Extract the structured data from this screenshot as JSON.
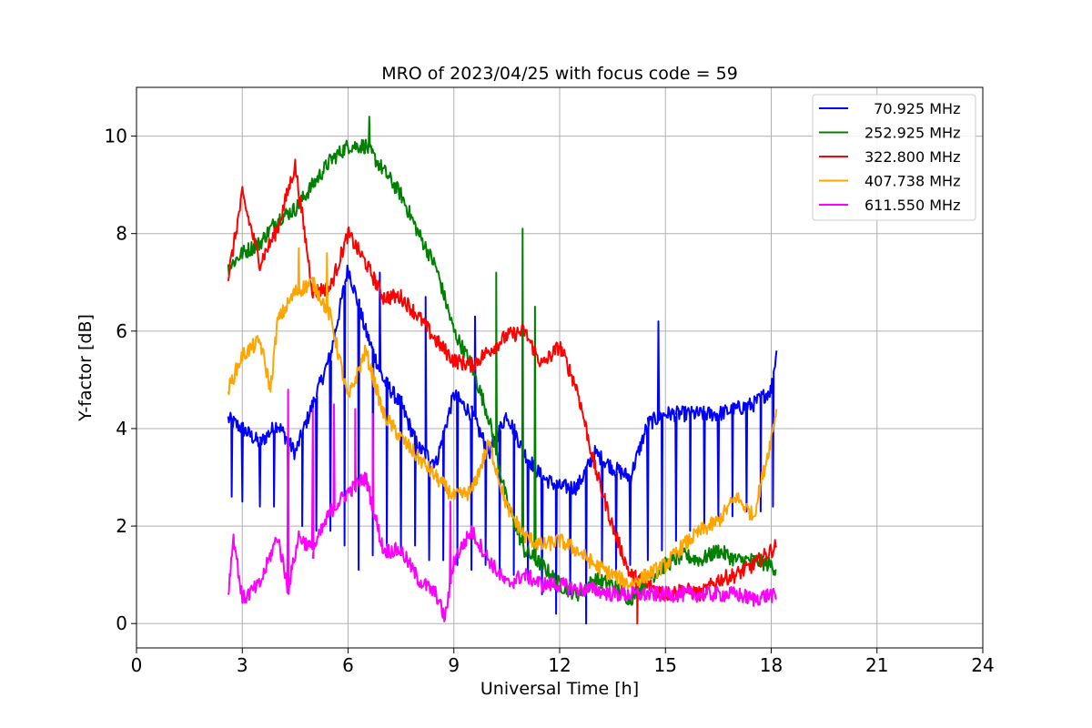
{
  "chart_data": {
    "type": "line",
    "title": "MRO of 2023/04/25 with focus code = 59",
    "xlabel": "Universal Time [h]",
    "ylabel": "Y-factor [dB]",
    "xlim": [
      0,
      24
    ],
    "ylim": [
      -0.5,
      11
    ],
    "xticks": [
      0,
      3,
      6,
      9,
      12,
      15,
      18,
      21,
      24
    ],
    "yticks": [
      0,
      2,
      4,
      6,
      8,
      10
    ],
    "grid": true,
    "legend_position": "top-right",
    "series": [
      {
        "name": "  70.925 MHz",
        "color": "#0000ff",
        "points": [
          [
            2.6,
            4.2
          ],
          [
            3.0,
            4.0
          ],
          [
            3.5,
            3.7
          ],
          [
            4.0,
            4.1
          ],
          [
            4.5,
            3.5
          ],
          [
            5.0,
            4.5
          ],
          [
            5.5,
            5.5
          ],
          [
            6.0,
            7.3
          ],
          [
            6.5,
            6.0
          ],
          [
            7.0,
            5.0
          ],
          [
            7.5,
            4.5
          ],
          [
            8.0,
            3.6
          ],
          [
            8.5,
            3.3
          ],
          [
            9.0,
            4.7
          ],
          [
            9.5,
            4.3
          ],
          [
            10.0,
            3.5
          ],
          [
            10.5,
            4.3
          ],
          [
            11.0,
            3.5
          ],
          [
            11.5,
            3.0
          ],
          [
            12.0,
            2.8
          ],
          [
            12.5,
            2.8
          ],
          [
            13.0,
            3.5
          ],
          [
            13.5,
            3.2
          ],
          [
            14.0,
            3.0
          ],
          [
            14.5,
            4.1
          ],
          [
            15.0,
            4.3
          ],
          [
            15.5,
            4.3
          ],
          [
            16.0,
            4.3
          ],
          [
            16.5,
            4.3
          ],
          [
            17.0,
            4.4
          ],
          [
            17.5,
            4.5
          ],
          [
            18.0,
            4.8
          ],
          [
            18.15,
            5.6
          ]
        ],
        "dips": [
          [
            2.7,
            2.6
          ],
          [
            3.0,
            2.5
          ],
          [
            3.5,
            2.4
          ],
          [
            3.9,
            2.4
          ],
          [
            4.3,
            2.3
          ],
          [
            4.7,
            2.0
          ],
          [
            5.1,
            1.9
          ],
          [
            5.5,
            1.9
          ],
          [
            5.9,
            1.6
          ],
          [
            6.3,
            1.1
          ],
          [
            6.7,
            1.4
          ],
          [
            7.1,
            1.6
          ],
          [
            7.5,
            1.4
          ],
          [
            7.9,
            1.6
          ],
          [
            8.3,
            1.3
          ],
          [
            8.7,
            1.3
          ],
          [
            9.1,
            1.2
          ],
          [
            9.5,
            1.1
          ],
          [
            9.9,
            1.2
          ],
          [
            10.3,
            1.0
          ],
          [
            10.7,
            1.0
          ],
          [
            11.1,
            0.9
          ],
          [
            11.5,
            0.6
          ],
          [
            11.9,
            0.2
          ],
          [
            12.3,
            0.6
          ],
          [
            12.75,
            0.0
          ],
          [
            13.2,
            1.2
          ],
          [
            13.6,
            1.0
          ],
          [
            14.0,
            1.2
          ],
          [
            14.5,
            1.3
          ],
          [
            14.9,
            1.5
          ],
          [
            15.3,
            1.7
          ],
          [
            15.7,
            1.9
          ],
          [
            16.1,
            2.0
          ],
          [
            16.5,
            2.1
          ],
          [
            16.9,
            2.2
          ],
          [
            17.3,
            2.3
          ],
          [
            17.7,
            2.3
          ],
          [
            18.05,
            2.4
          ]
        ],
        "spikes": [
          [
            6.9,
            7.2
          ],
          [
            8.2,
            6.7
          ],
          [
            9.6,
            6.3
          ],
          [
            14.8,
            6.2
          ]
        ]
      },
      {
        "name": "252.925 MHz",
        "color": "#008000",
        "points": [
          [
            2.6,
            7.3
          ],
          [
            3.0,
            7.6
          ],
          [
            3.5,
            7.8
          ],
          [
            4.0,
            8.3
          ],
          [
            4.5,
            8.5
          ],
          [
            5.0,
            9.0
          ],
          [
            5.5,
            9.5
          ],
          [
            6.0,
            9.8
          ],
          [
            6.5,
            9.8
          ],
          [
            7.0,
            9.3
          ],
          [
            7.5,
            8.8
          ],
          [
            8.0,
            8.0
          ],
          [
            8.5,
            7.3
          ],
          [
            9.0,
            6.0
          ],
          [
            9.5,
            5.3
          ],
          [
            10.0,
            4.2
          ],
          [
            10.5,
            2.5
          ],
          [
            11.0,
            1.5
          ],
          [
            11.5,
            1.2
          ],
          [
            12.0,
            0.8
          ],
          [
            12.5,
            0.6
          ],
          [
            13.0,
            0.9
          ],
          [
            13.5,
            0.8
          ],
          [
            14.0,
            0.5
          ],
          [
            14.5,
            0.9
          ],
          [
            15.0,
            1.2
          ],
          [
            15.5,
            1.4
          ],
          [
            16.0,
            1.3
          ],
          [
            16.5,
            1.5
          ],
          [
            17.0,
            1.3
          ],
          [
            17.5,
            1.3
          ],
          [
            18.0,
            1.2
          ],
          [
            18.15,
            1.1
          ]
        ],
        "spikes": [
          [
            6.6,
            10.4
          ],
          [
            10.2,
            7.2
          ],
          [
            10.95,
            8.1
          ],
          [
            11.3,
            6.5
          ]
        ]
      },
      {
        "name": "322.800 MHz",
        "color": "#ff0000",
        "points": [
          [
            2.6,
            7.1
          ],
          [
            3.0,
            8.8
          ],
          [
            3.5,
            7.4
          ],
          [
            4.0,
            8.1
          ],
          [
            4.5,
            9.4
          ],
          [
            5.0,
            6.8
          ],
          [
            5.5,
            6.9
          ],
          [
            6.0,
            8.0
          ],
          [
            6.5,
            7.4
          ],
          [
            7.0,
            6.7
          ],
          [
            7.5,
            6.7
          ],
          [
            8.0,
            6.3
          ],
          [
            8.5,
            5.8
          ],
          [
            9.0,
            5.4
          ],
          [
            9.5,
            5.3
          ],
          [
            10.0,
            5.6
          ],
          [
            10.5,
            5.9
          ],
          [
            11.0,
            6.0
          ],
          [
            11.5,
            5.3
          ],
          [
            12.0,
            5.7
          ],
          [
            12.5,
            4.8
          ],
          [
            13.0,
            3.2
          ],
          [
            13.5,
            2.0
          ],
          [
            14.0,
            1.0
          ],
          [
            14.5,
            0.8
          ],
          [
            15.0,
            0.6
          ],
          [
            15.5,
            0.7
          ],
          [
            16.0,
            0.6
          ],
          [
            16.5,
            0.9
          ],
          [
            17.0,
            1.0
          ],
          [
            17.5,
            1.2
          ],
          [
            18.0,
            1.5
          ],
          [
            18.15,
            1.6
          ]
        ],
        "dips": [
          [
            14.2,
            0.0
          ]
        ]
      },
      {
        "name": "407.738 MHz",
        "color": "#ffa500",
        "points": [
          [
            2.6,
            4.8
          ],
          [
            3.0,
            5.5
          ],
          [
            3.5,
            5.8
          ],
          [
            3.8,
            4.8
          ],
          [
            4.0,
            6.2
          ],
          [
            4.5,
            6.8
          ],
          [
            5.0,
            7.0
          ],
          [
            5.5,
            6.3
          ],
          [
            6.0,
            4.6
          ],
          [
            6.5,
            5.6
          ],
          [
            7.0,
            4.3
          ],
          [
            7.5,
            3.8
          ],
          [
            8.0,
            3.4
          ],
          [
            8.5,
            3.0
          ],
          [
            9.0,
            2.6
          ],
          [
            9.5,
            2.7
          ],
          [
            10.0,
            3.7
          ],
          [
            10.5,
            2.4
          ],
          [
            11.0,
            1.8
          ],
          [
            11.5,
            1.6
          ],
          [
            12.0,
            1.7
          ],
          [
            12.5,
            1.5
          ],
          [
            13.0,
            1.2
          ],
          [
            13.5,
            1.0
          ],
          [
            14.0,
            0.8
          ],
          [
            14.5,
            1.0
          ],
          [
            15.0,
            1.2
          ],
          [
            15.5,
            1.6
          ],
          [
            16.0,
            1.9
          ],
          [
            16.5,
            2.1
          ],
          [
            17.0,
            2.6
          ],
          [
            17.5,
            2.2
          ],
          [
            18.0,
            3.8
          ],
          [
            18.15,
            4.4
          ]
        ],
        "spikes": [
          [
            4.6,
            7.7
          ],
          [
            5.4,
            7.6
          ]
        ]
      },
      {
        "name": "611.550 MHz",
        "color": "#ff00ff",
        "points": [
          [
            2.6,
            0.6
          ],
          [
            2.75,
            1.8
          ],
          [
            3.0,
            0.5
          ],
          [
            3.5,
            0.8
          ],
          [
            4.0,
            1.8
          ],
          [
            4.3,
            0.7
          ],
          [
            4.6,
            1.8
          ],
          [
            5.0,
            1.5
          ],
          [
            5.5,
            2.3
          ],
          [
            6.0,
            2.7
          ],
          [
            6.5,
            3.0
          ],
          [
            7.0,
            1.5
          ],
          [
            7.5,
            1.5
          ],
          [
            8.0,
            0.9
          ],
          [
            8.5,
            0.6
          ],
          [
            8.75,
            0.1
          ],
          [
            9.0,
            1.3
          ],
          [
            9.5,
            1.9
          ],
          [
            10.0,
            1.3
          ],
          [
            10.5,
            0.8
          ],
          [
            11.0,
            1.0
          ],
          [
            11.5,
            0.8
          ],
          [
            12.0,
            0.8
          ],
          [
            12.5,
            0.7
          ],
          [
            13.0,
            0.7
          ],
          [
            13.5,
            0.6
          ],
          [
            14.0,
            0.6
          ],
          [
            14.5,
            0.6
          ],
          [
            15.0,
            0.6
          ],
          [
            15.5,
            0.6
          ],
          [
            16.0,
            0.6
          ],
          [
            16.5,
            0.6
          ],
          [
            17.0,
            0.6
          ],
          [
            17.5,
            0.5
          ],
          [
            18.0,
            0.6
          ],
          [
            18.15,
            0.5
          ]
        ],
        "spikes": [
          [
            4.3,
            4.8
          ],
          [
            5.0,
            4.4
          ],
          [
            5.6,
            4.5
          ],
          [
            6.2,
            4.4
          ],
          [
            6.7,
            4.3
          ],
          [
            8.9,
            2.5
          ]
        ]
      }
    ]
  }
}
